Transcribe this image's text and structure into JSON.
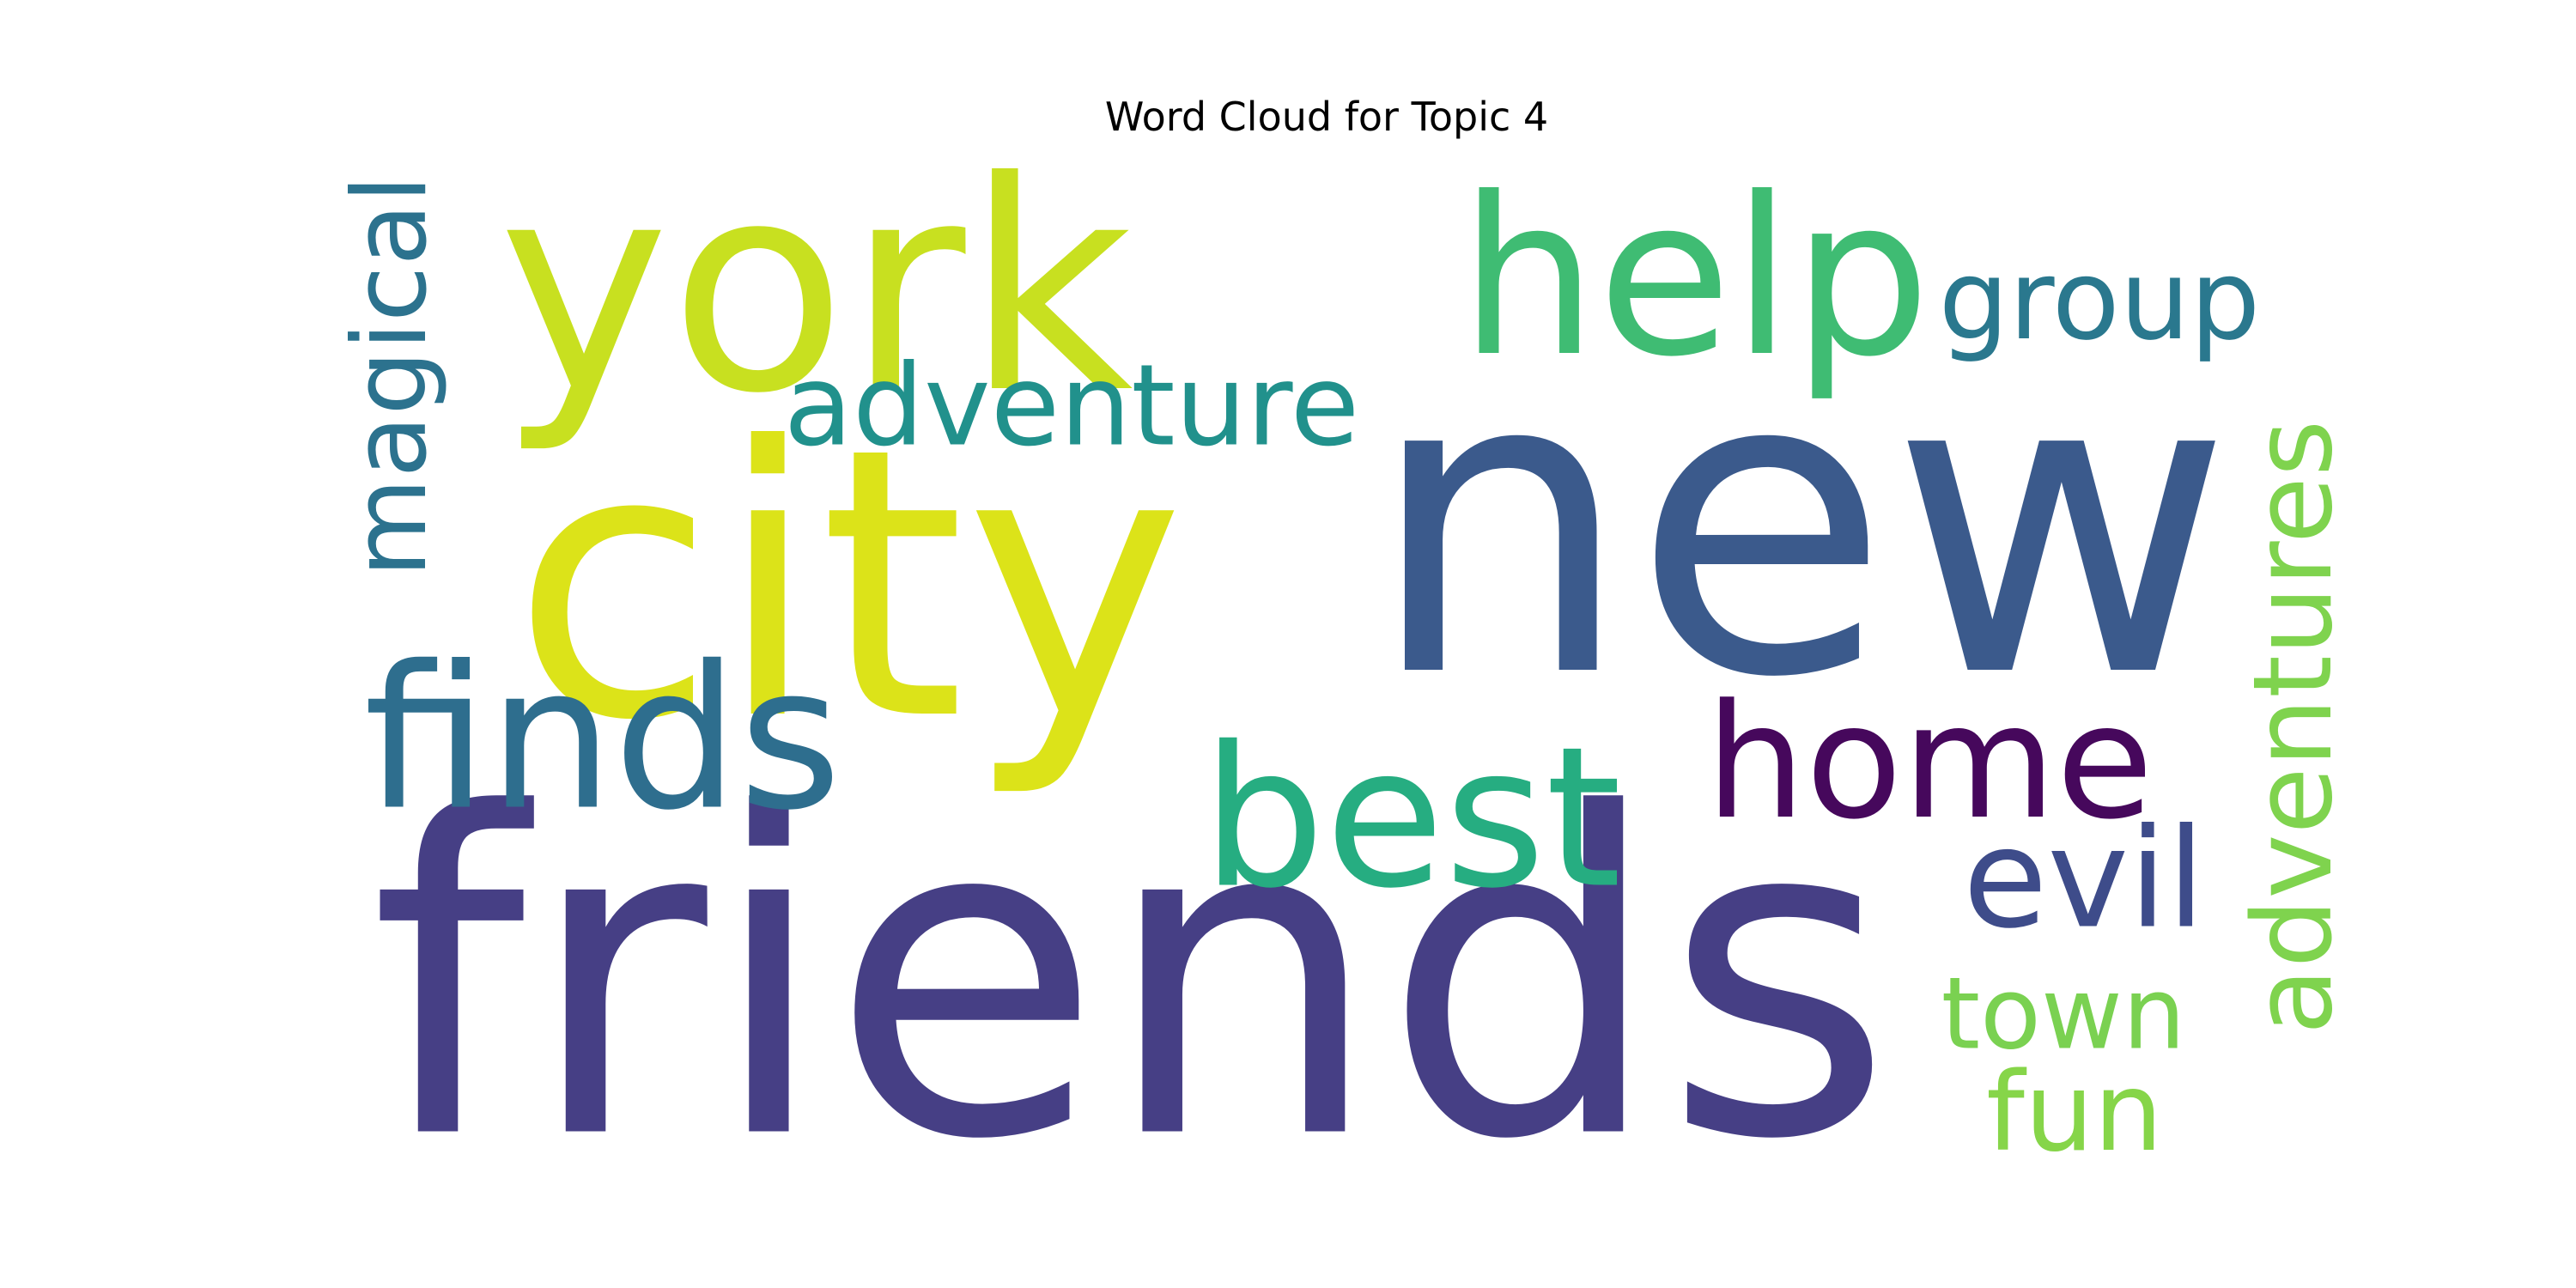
{
  "chart_data": {
    "type": "wordcloud",
    "title": "Word Cloud for Topic 4",
    "colormap": "viridis",
    "background": "#ffffff",
    "words": [
      {
        "text": "new",
        "weight": 1.0,
        "color": "#3b5a8c",
        "orientation": "horizontal"
      },
      {
        "text": "friends",
        "weight": 0.96,
        "color": "#463f85",
        "orientation": "horizontal"
      },
      {
        "text": "city",
        "weight": 0.7,
        "color": "#dce319",
        "orientation": "horizontal"
      },
      {
        "text": "york",
        "weight": 0.7,
        "color": "#c8e020",
        "orientation": "horizontal"
      },
      {
        "text": "help",
        "weight": 0.5,
        "color": "#3fbc73",
        "orientation": "horizontal"
      },
      {
        "text": "home",
        "weight": 0.48,
        "color": "#46085c",
        "orientation": "horizontal"
      },
      {
        "text": "best",
        "weight": 0.48,
        "color": "#26ad81",
        "orientation": "horizontal"
      },
      {
        "text": "finds",
        "weight": 0.41,
        "color": "#2e6e8e",
        "orientation": "horizontal"
      },
      {
        "text": "adventure",
        "weight": 0.28,
        "color": "#21918c",
        "orientation": "horizontal"
      },
      {
        "text": "adventures",
        "weight": 0.28,
        "color": "#7fd34e",
        "orientation": "vertical"
      },
      {
        "text": "group",
        "weight": 0.27,
        "color": "#2a788e",
        "orientation": "horizontal"
      },
      {
        "text": "magical",
        "weight": 0.27,
        "color": "#2c728e",
        "orientation": "vertical"
      },
      {
        "text": "town",
        "weight": 0.26,
        "color": "#7ad151",
        "orientation": "horizontal"
      },
      {
        "text": "evil",
        "weight": 0.26,
        "color": "#3e4c8a",
        "orientation": "horizontal"
      },
      {
        "text": "fun",
        "weight": 0.25,
        "color": "#86d549",
        "orientation": "horizontal"
      }
    ]
  }
}
